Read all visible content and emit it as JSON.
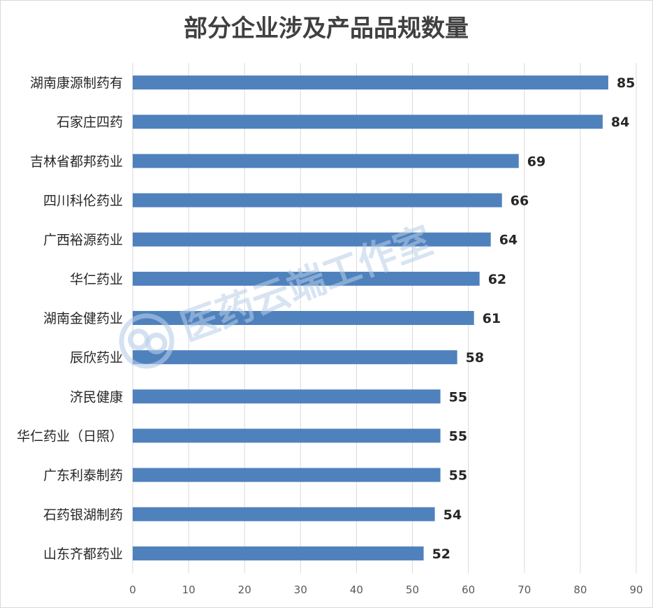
{
  "chart_data": {
    "type": "bar",
    "orientation": "horizontal",
    "title": "部分企业涉及产品品规数量",
    "categories": [
      "湖南康源制药有",
      "石家庄四药",
      "吉林省都邦药业",
      "四川科伦药业",
      "广西裕源药业",
      "华仁药业",
      "湖南金健药业",
      "辰欣药业",
      "济民健康",
      "华仁药业（日照）",
      "广东利泰制药",
      "石药银湖制药",
      "山东齐都药业"
    ],
    "values": [
      85,
      84,
      69,
      66,
      64,
      62,
      61,
      58,
      55,
      55,
      55,
      54,
      52
    ],
    "xlim": [
      0,
      90
    ],
    "xticks": [
      0,
      10,
      20,
      30,
      40,
      50,
      60,
      70,
      80,
      90
    ],
    "grid": true,
    "data_labels": true,
    "bar_color": "#4f81bd",
    "watermark": "医药云端工作室"
  }
}
